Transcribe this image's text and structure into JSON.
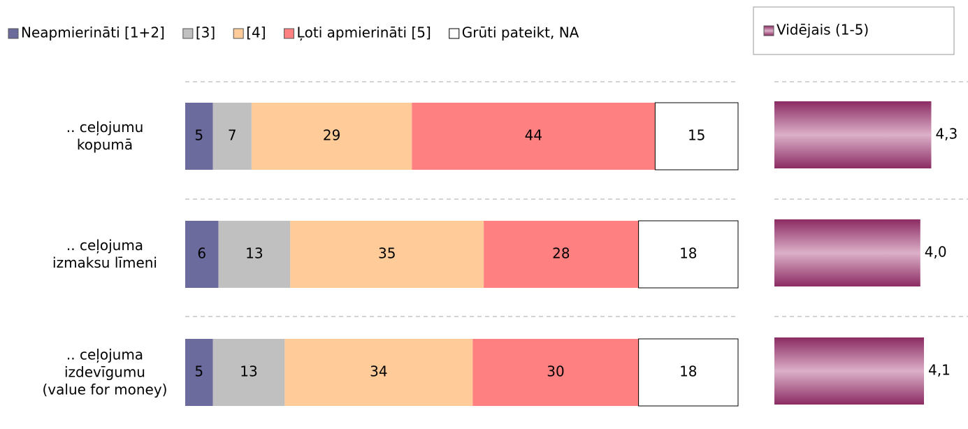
{
  "chart_data": [
    {
      "type": "bar",
      "orientation": "horizontal",
      "stacked": true,
      "categories": [
        ".. ceļojumu kopumā",
        ".. ceļojuma izmaksu līmeni",
        ".. ceļojuma izdevīgumu (value for money)"
      ],
      "series": [
        {
          "name": "Neapmierināti [1+2]",
          "color": "#6b6b9e",
          "values": [
            5,
            6,
            5
          ]
        },
        {
          "name": "[3]",
          "color": "#c0c0c0",
          "values": [
            7,
            13,
            13
          ]
        },
        {
          "name": "[4]",
          "color": "#ffcc99",
          "values": [
            29,
            35,
            34
          ]
        },
        {
          "name": "Ļoti apmierināti [5]",
          "color": "#ff8080",
          "values": [
            44,
            28,
            30
          ]
        },
        {
          "name": "Grūti pateikt, NA",
          "color": "#ffffff",
          "values": [
            15,
            18,
            18
          ]
        }
      ],
      "xlim": [
        0,
        100
      ],
      "grid": true,
      "legend": "top"
    },
    {
      "type": "bar",
      "orientation": "horizontal",
      "series": [
        {
          "name": "Vidējais (1-5)",
          "color": "#9c3a72",
          "values": [
            4.3,
            4.0,
            4.1
          ],
          "value_labels": [
            "4,3",
            "4,0",
            "4,1"
          ]
        }
      ],
      "xlim": [
        0,
        5
      ],
      "grid": true,
      "legend": "top"
    }
  ]
}
